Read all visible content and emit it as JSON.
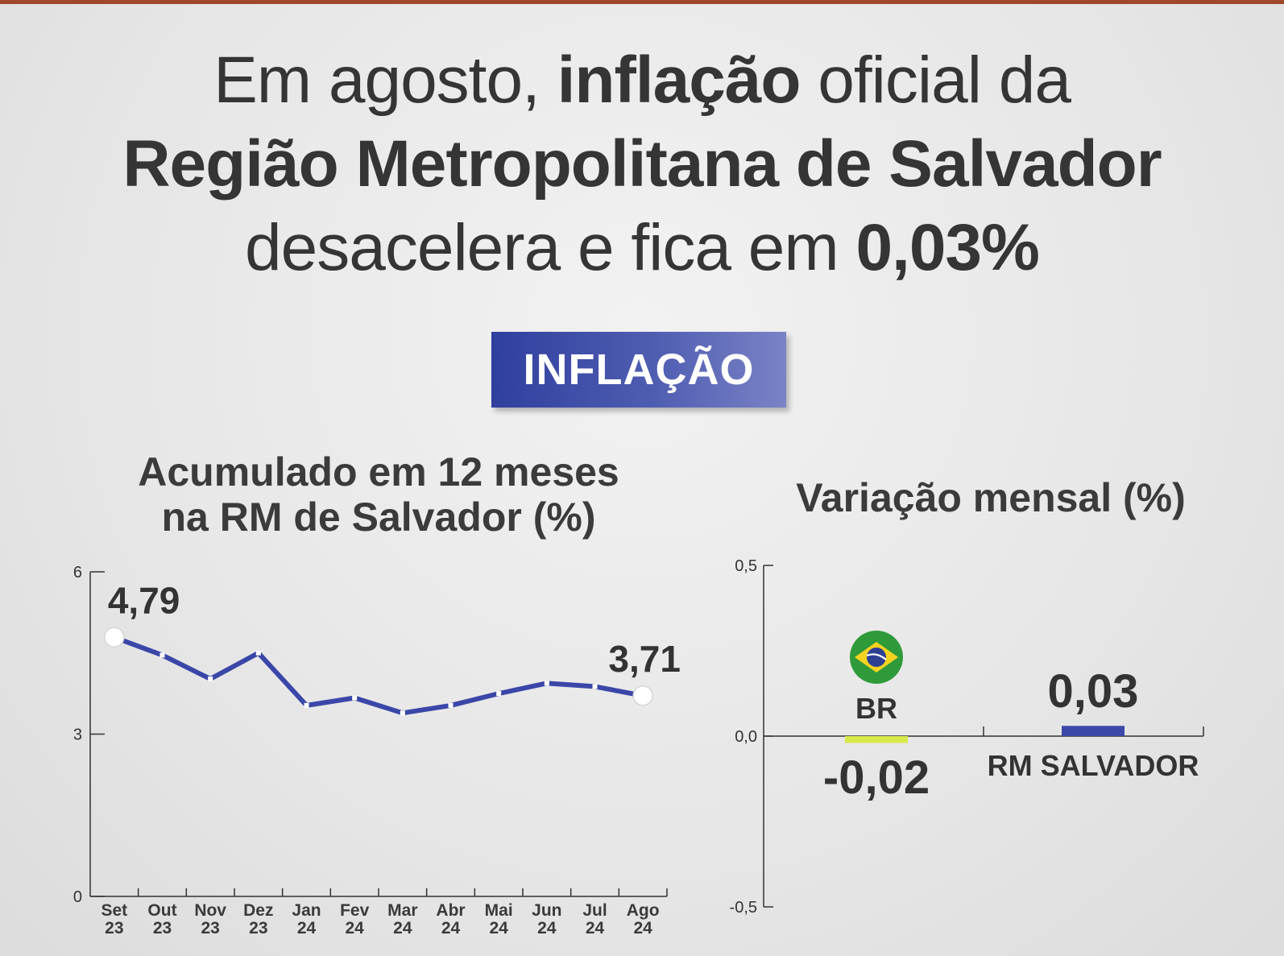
{
  "colors": {
    "top_bar": "#a0492a",
    "line": "#3a47a8",
    "br_bar": "#d8e84a",
    "rm_bar": "#3c49a8",
    "axis": "#333333",
    "text": "#353535"
  },
  "headline": {
    "l1_a": "Em agosto, ",
    "l1_b": "inflação",
    "l1_c": " oficial da",
    "l2": "Região Metropolitana de Salvador",
    "l3_a": "desacelera e fica em ",
    "l3_b": "0,03%"
  },
  "tag": "INFLAÇÃO",
  "chart_data": [
    {
      "type": "line",
      "title": "Acumulado em 12 meses na RM de Salvador (%)",
      "title_lines": [
        "Acumulado em 12 meses",
        "na RM de Salvador (%)"
      ],
      "categories": [
        [
          "Set",
          "23"
        ],
        [
          "Out",
          "23"
        ],
        [
          "Nov",
          "23"
        ],
        [
          "Dez",
          "23"
        ],
        [
          "Jan",
          "24"
        ],
        [
          "Fev",
          "24"
        ],
        [
          "Mar",
          "24"
        ],
        [
          "Abr",
          "24"
        ],
        [
          "Mai",
          "24"
        ],
        [
          "Jun",
          "24"
        ],
        [
          "Jul",
          "24"
        ],
        [
          "Ago",
          "24"
        ]
      ],
      "values": [
        4.79,
        4.46,
        4.02,
        4.5,
        3.53,
        3.67,
        3.39,
        3.53,
        3.75,
        3.94,
        3.88,
        3.71
      ],
      "labels": [
        {
          "index": 0,
          "text": "4,79"
        },
        {
          "index": 11,
          "text": "3,71"
        }
      ],
      "ylim": [
        0,
        6
      ],
      "yticks": [
        {
          "value": 0,
          "label": "0"
        },
        {
          "value": 3,
          "label": "3"
        },
        {
          "value": 6,
          "label": "6"
        }
      ],
      "xlabel": "",
      "ylabel": ""
    },
    {
      "type": "bar",
      "title": "Variação mensal (%)",
      "categories": [
        "BR",
        "RM SALVADOR"
      ],
      "values": [
        -0.02,
        0.03
      ],
      "value_labels": [
        "-0,02",
        "0,03"
      ],
      "ylim": [
        -0.5,
        0.5
      ],
      "yticks": [
        {
          "value": 0.5,
          "label": "0,5"
        },
        {
          "value": 0.0,
          "label": "0,0"
        },
        {
          "value": -0.5,
          "label": "-0,5"
        }
      ],
      "xlabel": "",
      "ylabel": ""
    }
  ]
}
